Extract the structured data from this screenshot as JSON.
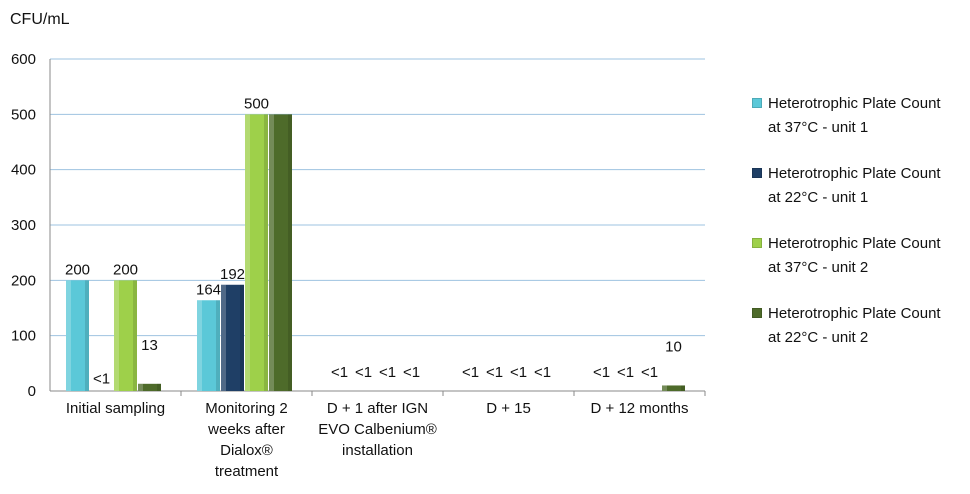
{
  "chart_data": {
    "type": "bar",
    "ylabel": "CFU/mL",
    "ylim": [
      0,
      600
    ],
    "yticks": [
      0,
      100,
      200,
      300,
      400,
      500,
      600
    ],
    "grid": true,
    "legend_position": "right",
    "categories": [
      [
        "Initial sampling"
      ],
      [
        "Monitoring 2",
        "weeks after",
        "Dialox®",
        "treatment"
      ],
      [
        "D + 1 after IGN",
        "EVO Calbenium®",
        "installation"
      ],
      [
        "D + 15"
      ],
      [
        "D + 12 months"
      ]
    ],
    "series": [
      {
        "name": [
          "Heterotrophic Plate Count",
          "at 37°C  -  unit 1"
        ],
        "color": "#5bc8d8",
        "values": [
          200,
          164,
          null,
          null,
          null
        ],
        "labels": [
          "200",
          "164",
          "<1",
          "<1",
          "<1"
        ]
      },
      {
        "name": [
          "Heterotrophic Plate Count",
          "at 22°C  -  unit 1"
        ],
        "color": "#1f3f66",
        "values": [
          null,
          192,
          null,
          null,
          null
        ],
        "labels": [
          "<1",
          "192",
          "<1",
          "<1",
          "<1"
        ]
      },
      {
        "name": [
          "Heterotrophic Plate Count",
          "at 37°C  -  unit 2"
        ],
        "color": "#9ed04a",
        "values": [
          200,
          500,
          null,
          null,
          null
        ],
        "labels": [
          "200",
          "500",
          "<1",
          "<1",
          "<1"
        ]
      },
      {
        "name": [
          "Heterotrophic Plate Count",
          "at 22°C  -  unit 2"
        ],
        "color": "#4e6b2a",
        "values": [
          13,
          500,
          null,
          null,
          10
        ],
        "labels": [
          "13",
          "",
          "<1",
          "<1",
          "10"
        ]
      }
    ]
  }
}
